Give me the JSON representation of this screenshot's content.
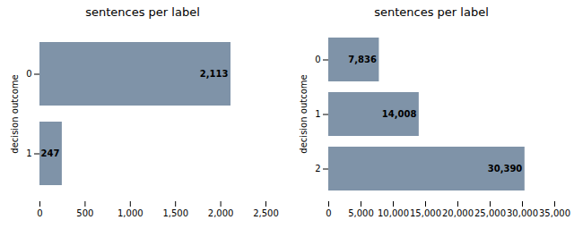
{
  "chart_data": [
    {
      "type": "bar",
      "orientation": "horizontal",
      "title": "sentences per label",
      "ylabel": "decision outcome",
      "categories": [
        "0",
        "1"
      ],
      "values": [
        2113,
        247
      ],
      "value_labels": [
        "2,113",
        "247"
      ],
      "color": "#7f93a8",
      "data_labels": true,
      "grid": false,
      "xlim": [
        0,
        2500
      ],
      "xticks": [
        0,
        500,
        {
          "value": 1000,
          "label": "1,000"
        },
        {
          "value": 1500,
          "label": "1,500"
        },
        {
          "value": 2000,
          "label": "2,000"
        },
        {
          "value": 2500,
          "label": "2,500"
        }
      ]
    },
    {
      "type": "bar",
      "orientation": "horizontal",
      "title": "sentences per label",
      "ylabel": "decision outcome",
      "categories": [
        "0",
        "1",
        "2"
      ],
      "values": [
        7836,
        14008,
        30390
      ],
      "value_labels": [
        "7,836",
        "14,008",
        "30,390"
      ],
      "color": "#7f93a8",
      "data_labels": true,
      "grid": false,
      "xlim": [
        0,
        35000
      ],
      "xticks": [
        0,
        {
          "value": 5000,
          "label": "5,000"
        },
        {
          "value": 10000,
          "label": "10,000"
        },
        {
          "value": 15000,
          "label": "15,000"
        },
        {
          "value": 20000,
          "label": "20,000"
        },
        {
          "value": 25000,
          "label": "25,000"
        },
        {
          "value": 30000,
          "label": "30,000"
        },
        {
          "value": 35000,
          "label": "35,000"
        }
      ]
    }
  ]
}
